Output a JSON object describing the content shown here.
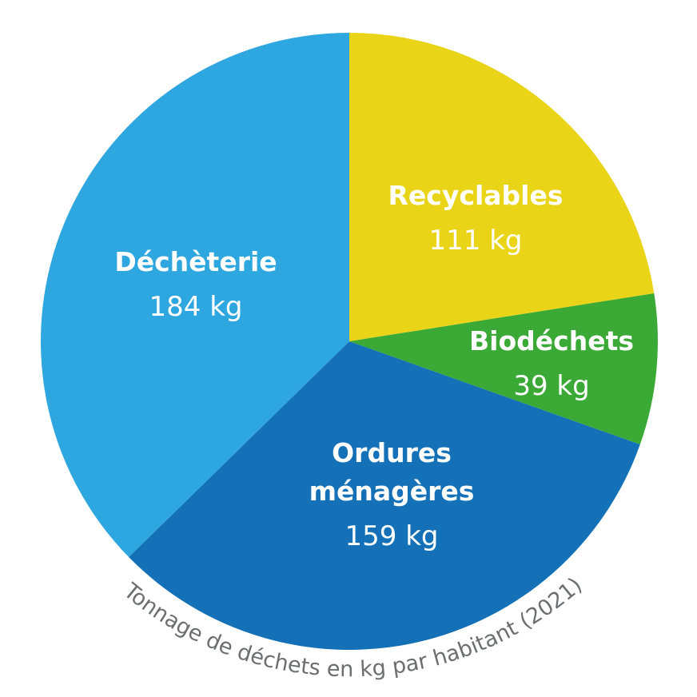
{
  "chart_data": {
    "type": "pie",
    "title": "",
    "caption": "Tonnage de déchets en kg par habitant (2021)",
    "unit": "kg",
    "slices": [
      {
        "label_lines": [
          "Recyclables"
        ],
        "value": 111,
        "value_text": "111 kg",
        "color": "#ead418"
      },
      {
        "label_lines": [
          "Biodéchets"
        ],
        "value": 39,
        "value_text": "39 kg",
        "color": "#3aa935"
      },
      {
        "label_lines": [
          "Ordures",
          "ménagères"
        ],
        "value": 159,
        "value_text": "159 kg",
        "color": "#1471b7"
      },
      {
        "label_lines": [
          "Déchèterie"
        ],
        "value": 184,
        "value_text": "184 kg",
        "color": "#2ea7e0"
      }
    ],
    "start_angle": "12 o'clock",
    "direction": "clockwise",
    "legend": "none"
  }
}
